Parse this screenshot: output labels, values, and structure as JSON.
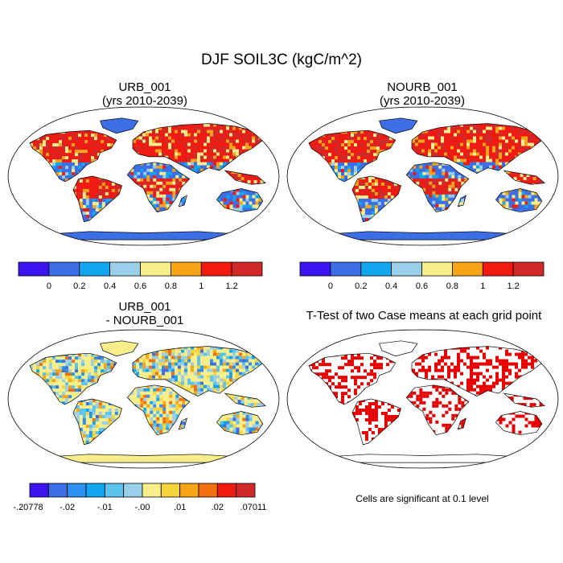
{
  "title": "DJF SOIL3C (kgC/m^2)",
  "panels": [
    {
      "id": "urb",
      "title_line1": "URB_001",
      "title_line2": "(yrs 2010-2039)"
    },
    {
      "id": "nourb",
      "title_line1": "NOURB_001",
      "title_line2": "(yrs 2010-2039)"
    },
    {
      "id": "diff",
      "title_line1": "URB_001",
      "title_line2": "- NOURB_001"
    },
    {
      "id": "ttest",
      "title_line1": "T-Test of two Case means at each grid point",
      "title_line2": ""
    }
  ],
  "note": "Cells are significant at 0.1 level",
  "chart_data": [
    {
      "type": "heatmap",
      "title": "URB_001 (yrs 2010-2039)",
      "colorbar": {
        "colors": [
          "#3c14f0",
          "#3c6ee6",
          "#12a6f0",
          "#9acfea",
          "#f7ee8b",
          "#f7a417",
          "#f21a0f",
          "#d12828"
        ],
        "tick_labels": [
          "0",
          "0.2",
          "0.4",
          "0.6",
          "0.8",
          "1",
          "1.2"
        ]
      }
    },
    {
      "type": "heatmap",
      "title": "NOURB_001 (yrs 2010-2039)",
      "colorbar": {
        "colors": [
          "#3c14f0",
          "#3c6ee6",
          "#12a6f0",
          "#9acfea",
          "#f7ee8b",
          "#f7a417",
          "#f21a0f",
          "#d12828"
        ],
        "tick_labels": [
          "0",
          "0.2",
          "0.4",
          "0.6",
          "0.8",
          "1",
          "1.2"
        ]
      }
    },
    {
      "type": "heatmap",
      "title": "URB_001 - NOURB_001",
      "colorbar": {
        "colors": [
          "#3c14f0",
          "#3c6ee6",
          "#2d8ff0",
          "#12a6f0",
          "#5ac3f0",
          "#9acfea",
          "#f7ee8b",
          "#f7d33c",
          "#f7a417",
          "#f26f0f",
          "#f21a0f",
          "#d12828"
        ],
        "tick_labels": [
          "-.20778",
          "-.02",
          "-.01",
          "-.00",
          ".01",
          ".02",
          ".07011"
        ]
      }
    },
    {
      "type": "heatmap",
      "title": "T-Test of two Case means at each grid point",
      "significance_color": "#e60000"
    }
  ]
}
